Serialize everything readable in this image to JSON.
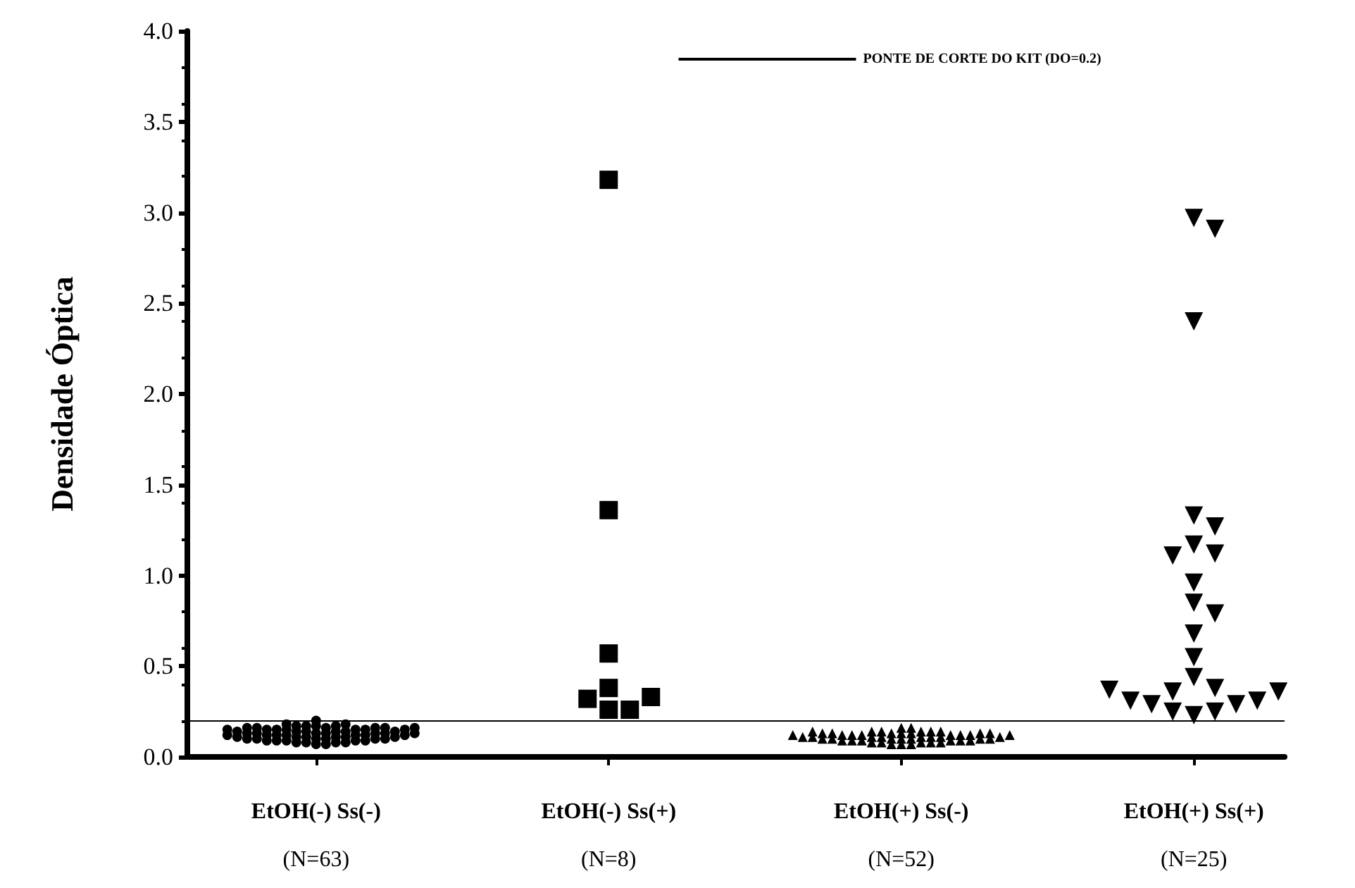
{
  "chart_data": {
    "type": "scatter",
    "ylabel": "Densidade Óptica",
    "categories": [
      "EtOH(-) Ss(-)\n(N=63)",
      "EtOH(-) Ss(+)\n(N=8)",
      "EtOH(+) Ss(-)\n(N=52)",
      "EtOH(+) Ss(+)\n(N=25)"
    ],
    "series": [
      {
        "color": "#000000",
        "marker": "circle",
        "x": [
          "EtOH(-) Ss(-)\n(N=63)",
          "EtOH(-) Ss(-)\n(N=63)",
          "EtOH(-) Ss(-)\n(N=63)",
          "EtOH(-) Ss(-)\n(N=63)",
          "EtOH(-) Ss(-)\n(N=63)",
          "EtOH(-) Ss(-)\n(N=63)",
          "EtOH(-) Ss(-)\n(N=63)",
          "EtOH(-) Ss(-)\n(N=63)",
          "EtOH(-) Ss(-)\n(N=63)",
          "EtOH(-) Ss(-)\n(N=63)",
          "EtOH(-) Ss(-)\n(N=63)",
          "EtOH(-) Ss(-)\n(N=63)",
          "EtOH(-) Ss(-)\n(N=63)",
          "EtOH(-) Ss(-)\n(N=63)",
          "EtOH(-) Ss(-)\n(N=63)",
          "EtOH(-) Ss(-)\n(N=63)",
          "EtOH(-) Ss(-)\n(N=63)",
          "EtOH(-) Ss(-)\n(N=63)",
          "EtOH(-) Ss(-)\n(N=63)",
          "EtOH(-) Ss(-)\n(N=63)",
          "EtOH(-) Ss(-)\n(N=63)",
          "EtOH(-) Ss(-)\n(N=63)",
          "EtOH(-) Ss(-)\n(N=63)",
          "EtOH(-) Ss(-)\n(N=63)",
          "EtOH(-) Ss(-)\n(N=63)",
          "EtOH(-) Ss(-)\n(N=63)",
          "EtOH(-) Ss(-)\n(N=63)",
          "EtOH(-) Ss(-)\n(N=63)",
          "EtOH(-) Ss(-)\n(N=63)",
          "EtOH(-) Ss(-)\n(N=63)",
          "EtOH(-) Ss(-)\n(N=63)",
          "EtOH(-) Ss(-)\n(N=63)",
          "EtOH(-) Ss(-)\n(N=63)",
          "EtOH(-) Ss(-)\n(N=63)",
          "EtOH(-) Ss(-)\n(N=63)",
          "EtOH(-) Ss(-)\n(N=63)",
          "EtOH(-) Ss(-)\n(N=63)",
          "EtOH(-) Ss(-)\n(N=63)",
          "EtOH(-) Ss(-)\n(N=63)",
          "EtOH(-) Ss(-)\n(N=63)",
          "EtOH(-) Ss(-)\n(N=63)",
          "EtOH(-) Ss(-)\n(N=63)",
          "EtOH(-) Ss(-)\n(N=63)",
          "EtOH(-) Ss(-)\n(N=63)",
          "EtOH(-) Ss(-)\n(N=63)",
          "EtOH(-) Ss(-)\n(N=63)",
          "EtOH(-) Ss(-)\n(N=63)",
          "EtOH(-) Ss(-)\n(N=63)",
          "EtOH(-) Ss(-)\n(N=63)",
          "EtOH(-) Ss(-)\n(N=63)",
          "EtOH(-) Ss(-)\n(N=63)",
          "EtOH(-) Ss(-)\n(N=63)",
          "EtOH(-) Ss(-)\n(N=63)",
          "EtOH(-) Ss(-)\n(N=63)",
          "EtOH(-) Ss(-)\n(N=63)",
          "EtOH(-) Ss(-)\n(N=63)",
          "EtOH(-) Ss(-)\n(N=63)",
          "EtOH(-) Ss(-)\n(N=63)",
          "EtOH(-) Ss(-)\n(N=63)",
          "EtOH(-) Ss(-)\n(N=63)",
          "EtOH(-) Ss(-)\n(N=63)",
          "EtOH(-) Ss(-)\n(N=63)",
          "EtOH(-) Ss(-)\n(N=63)"
        ],
        "values": [
          0.2,
          0.17,
          0.07,
          0.07,
          0.08,
          0.08,
          0.08,
          0.08,
          0.09,
          0.09,
          0.09,
          0.09,
          0.09,
          0.1,
          0.1,
          0.1,
          0.1,
          0.1,
          0.1,
          0.11,
          0.11,
          0.11,
          0.11,
          0.11,
          0.11,
          0.12,
          0.12,
          0.12,
          0.12,
          0.12,
          0.12,
          0.12,
          0.13,
          0.13,
          0.13,
          0.13,
          0.13,
          0.13,
          0.13,
          0.14,
          0.14,
          0.14,
          0.14,
          0.14,
          0.14,
          0.15,
          0.15,
          0.15,
          0.15,
          0.15,
          0.15,
          0.15,
          0.16,
          0.16,
          0.16,
          0.16,
          0.16,
          0.16,
          0.17,
          0.17,
          0.17,
          0.18,
          0.18
        ]
      },
      {
        "color": "#000000",
        "marker": "square",
        "x": [
          "EtOH(-) Ss(+)\n(N=8)",
          "EtOH(-) Ss(+)\n(N=8)",
          "EtOH(-) Ss(+)\n(N=8)",
          "EtOH(-) Ss(+)\n(N=8)",
          "EtOH(-) Ss(+)\n(N=8)",
          "EtOH(-) Ss(+)\n(N=8)",
          "EtOH(-) Ss(+)\n(N=8)",
          "EtOH(-) Ss(+)\n(N=8)"
        ],
        "values": [
          3.18,
          1.36,
          0.57,
          0.26,
          0.26,
          0.32,
          0.33,
          0.38
        ]
      },
      {
        "color": "#000000",
        "marker": "triangle",
        "x": [
          "EtOH(+) Ss(-)\n(N=52)",
          "EtOH(+) Ss(-)\n(N=52)",
          "EtOH(+) Ss(-)\n(N=52)",
          "EtOH(+) Ss(-)\n(N=52)",
          "EtOH(+) Ss(-)\n(N=52)",
          "EtOH(+) Ss(-)\n(N=52)",
          "EtOH(+) Ss(-)\n(N=52)",
          "EtOH(+) Ss(-)\n(N=52)",
          "EtOH(+) Ss(-)\n(N=52)",
          "EtOH(+) Ss(-)\n(N=52)",
          "EtOH(+) Ss(-)\n(N=52)",
          "EtOH(+) Ss(-)\n(N=52)",
          "EtOH(+) Ss(-)\n(N=52)",
          "EtOH(+) Ss(-)\n(N=52)",
          "EtOH(+) Ss(-)\n(N=52)",
          "EtOH(+) Ss(-)\n(N=52)",
          "EtOH(+) Ss(-)\n(N=52)",
          "EtOH(+) Ss(-)\n(N=52)",
          "EtOH(+) Ss(-)\n(N=52)",
          "EtOH(+) Ss(-)\n(N=52)",
          "EtOH(+) Ss(-)\n(N=52)",
          "EtOH(+) Ss(-)\n(N=52)",
          "EtOH(+) Ss(-)\n(N=52)",
          "EtOH(+) Ss(-)\n(N=52)",
          "EtOH(+) Ss(-)\n(N=52)",
          "EtOH(+) Ss(-)\n(N=52)",
          "EtOH(+) Ss(-)\n(N=52)",
          "EtOH(+) Ss(-)\n(N=52)",
          "EtOH(+) Ss(-)\n(N=52)",
          "EtOH(+) Ss(-)\n(N=52)",
          "EtOH(+) Ss(-)\n(N=52)",
          "EtOH(+) Ss(-)\n(N=52)",
          "EtOH(+) Ss(-)\n(N=52)",
          "EtOH(+) Ss(-)\n(N=52)",
          "EtOH(+) Ss(-)\n(N=52)",
          "EtOH(+) Ss(-)\n(N=52)",
          "EtOH(+) Ss(-)\n(N=52)",
          "EtOH(+) Ss(-)\n(N=52)",
          "EtOH(+) Ss(-)\n(N=52)",
          "EtOH(+) Ss(-)\n(N=52)",
          "EtOH(+) Ss(-)\n(N=52)",
          "EtOH(+) Ss(-)\n(N=52)",
          "EtOH(+) Ss(-)\n(N=52)",
          "EtOH(+) Ss(-)\n(N=52)",
          "EtOH(+) Ss(-)\n(N=52)",
          "EtOH(+) Ss(-)\n(N=52)",
          "EtOH(+) Ss(-)\n(N=52)",
          "EtOH(+) Ss(-)\n(N=52)",
          "EtOH(+) Ss(-)\n(N=52)",
          "EtOH(+) Ss(-)\n(N=52)",
          "EtOH(+) Ss(-)\n(N=52)",
          "EtOH(+) Ss(-)\n(N=52)"
        ],
        "values": [
          0.16,
          0.16,
          0.07,
          0.07,
          0.07,
          0.08,
          0.08,
          0.08,
          0.08,
          0.08,
          0.09,
          0.09,
          0.09,
          0.09,
          0.09,
          0.09,
          0.1,
          0.1,
          0.1,
          0.1,
          0.1,
          0.1,
          0.1,
          0.11,
          0.11,
          0.11,
          0.11,
          0.11,
          0.11,
          0.11,
          0.11,
          0.12,
          0.12,
          0.12,
          0.12,
          0.12,
          0.12,
          0.12,
          0.12,
          0.13,
          0.13,
          0.13,
          0.13,
          0.13,
          0.13,
          0.13,
          0.14,
          0.14,
          0.14,
          0.14,
          0.14,
          0.14
        ]
      },
      {
        "color": "#000000",
        "marker": "triangle-down",
        "x": [
          "EtOH(+) Ss(+)\n(N=25)",
          "EtOH(+) Ss(+)\n(N=25)",
          "EtOH(+) Ss(+)\n(N=25)",
          "EtOH(+) Ss(+)\n(N=25)",
          "EtOH(+) Ss(+)\n(N=25)",
          "EtOH(+) Ss(+)\n(N=25)",
          "EtOH(+) Ss(+)\n(N=25)",
          "EtOH(+) Ss(+)\n(N=25)",
          "EtOH(+) Ss(+)\n(N=25)",
          "EtOH(+) Ss(+)\n(N=25)",
          "EtOH(+) Ss(+)\n(N=25)",
          "EtOH(+) Ss(+)\n(N=25)",
          "EtOH(+) Ss(+)\n(N=25)",
          "EtOH(+) Ss(+)\n(N=25)",
          "EtOH(+) Ss(+)\n(N=25)",
          "EtOH(+) Ss(+)\n(N=25)",
          "EtOH(+) Ss(+)\n(N=25)",
          "EtOH(+) Ss(+)\n(N=25)",
          "EtOH(+) Ss(+)\n(N=25)",
          "EtOH(+) Ss(+)\n(N=25)",
          "EtOH(+) Ss(+)\n(N=25)",
          "EtOH(+) Ss(+)\n(N=25)",
          "EtOH(+) Ss(+)\n(N=25)",
          "EtOH(+) Ss(+)\n(N=25)",
          "EtOH(+) Ss(+)\n(N=25)"
        ],
        "values": [
          2.97,
          2.91,
          2.4,
          1.33,
          1.27,
          1.17,
          1.12,
          1.11,
          0.96,
          0.85,
          0.79,
          0.68,
          0.55,
          0.44,
          0.38,
          0.23,
          0.25,
          0.25,
          0.29,
          0.29,
          0.31,
          0.31,
          0.36,
          0.36,
          0.37
        ]
      }
    ],
    "ylim": [
      0,
      4.0
    ],
    "yticks": [
      {
        "value": 0,
        "label": "0.0"
      },
      {
        "value": 0.5,
        "label": "0.5"
      },
      {
        "value": 1,
        "label": "1.0"
      },
      {
        "value": 1.5,
        "label": "1.5"
      },
      {
        "value": 2,
        "label": "2.0"
      },
      {
        "value": 2.5,
        "label": "2.5"
      },
      {
        "value": 3,
        "label": "3.0"
      },
      {
        "value": 3.5,
        "label": "3.5"
      },
      {
        "value": 4,
        "label": "4.0"
      }
    ],
    "ref_lines": [
      {
        "axis": "y",
        "value": 0.2,
        "label": "PONTE DE CORTE DO KIT (DO=0.2)",
        "color": "#000000"
      }
    ],
    "legend": "top right",
    "grid": false
  }
}
